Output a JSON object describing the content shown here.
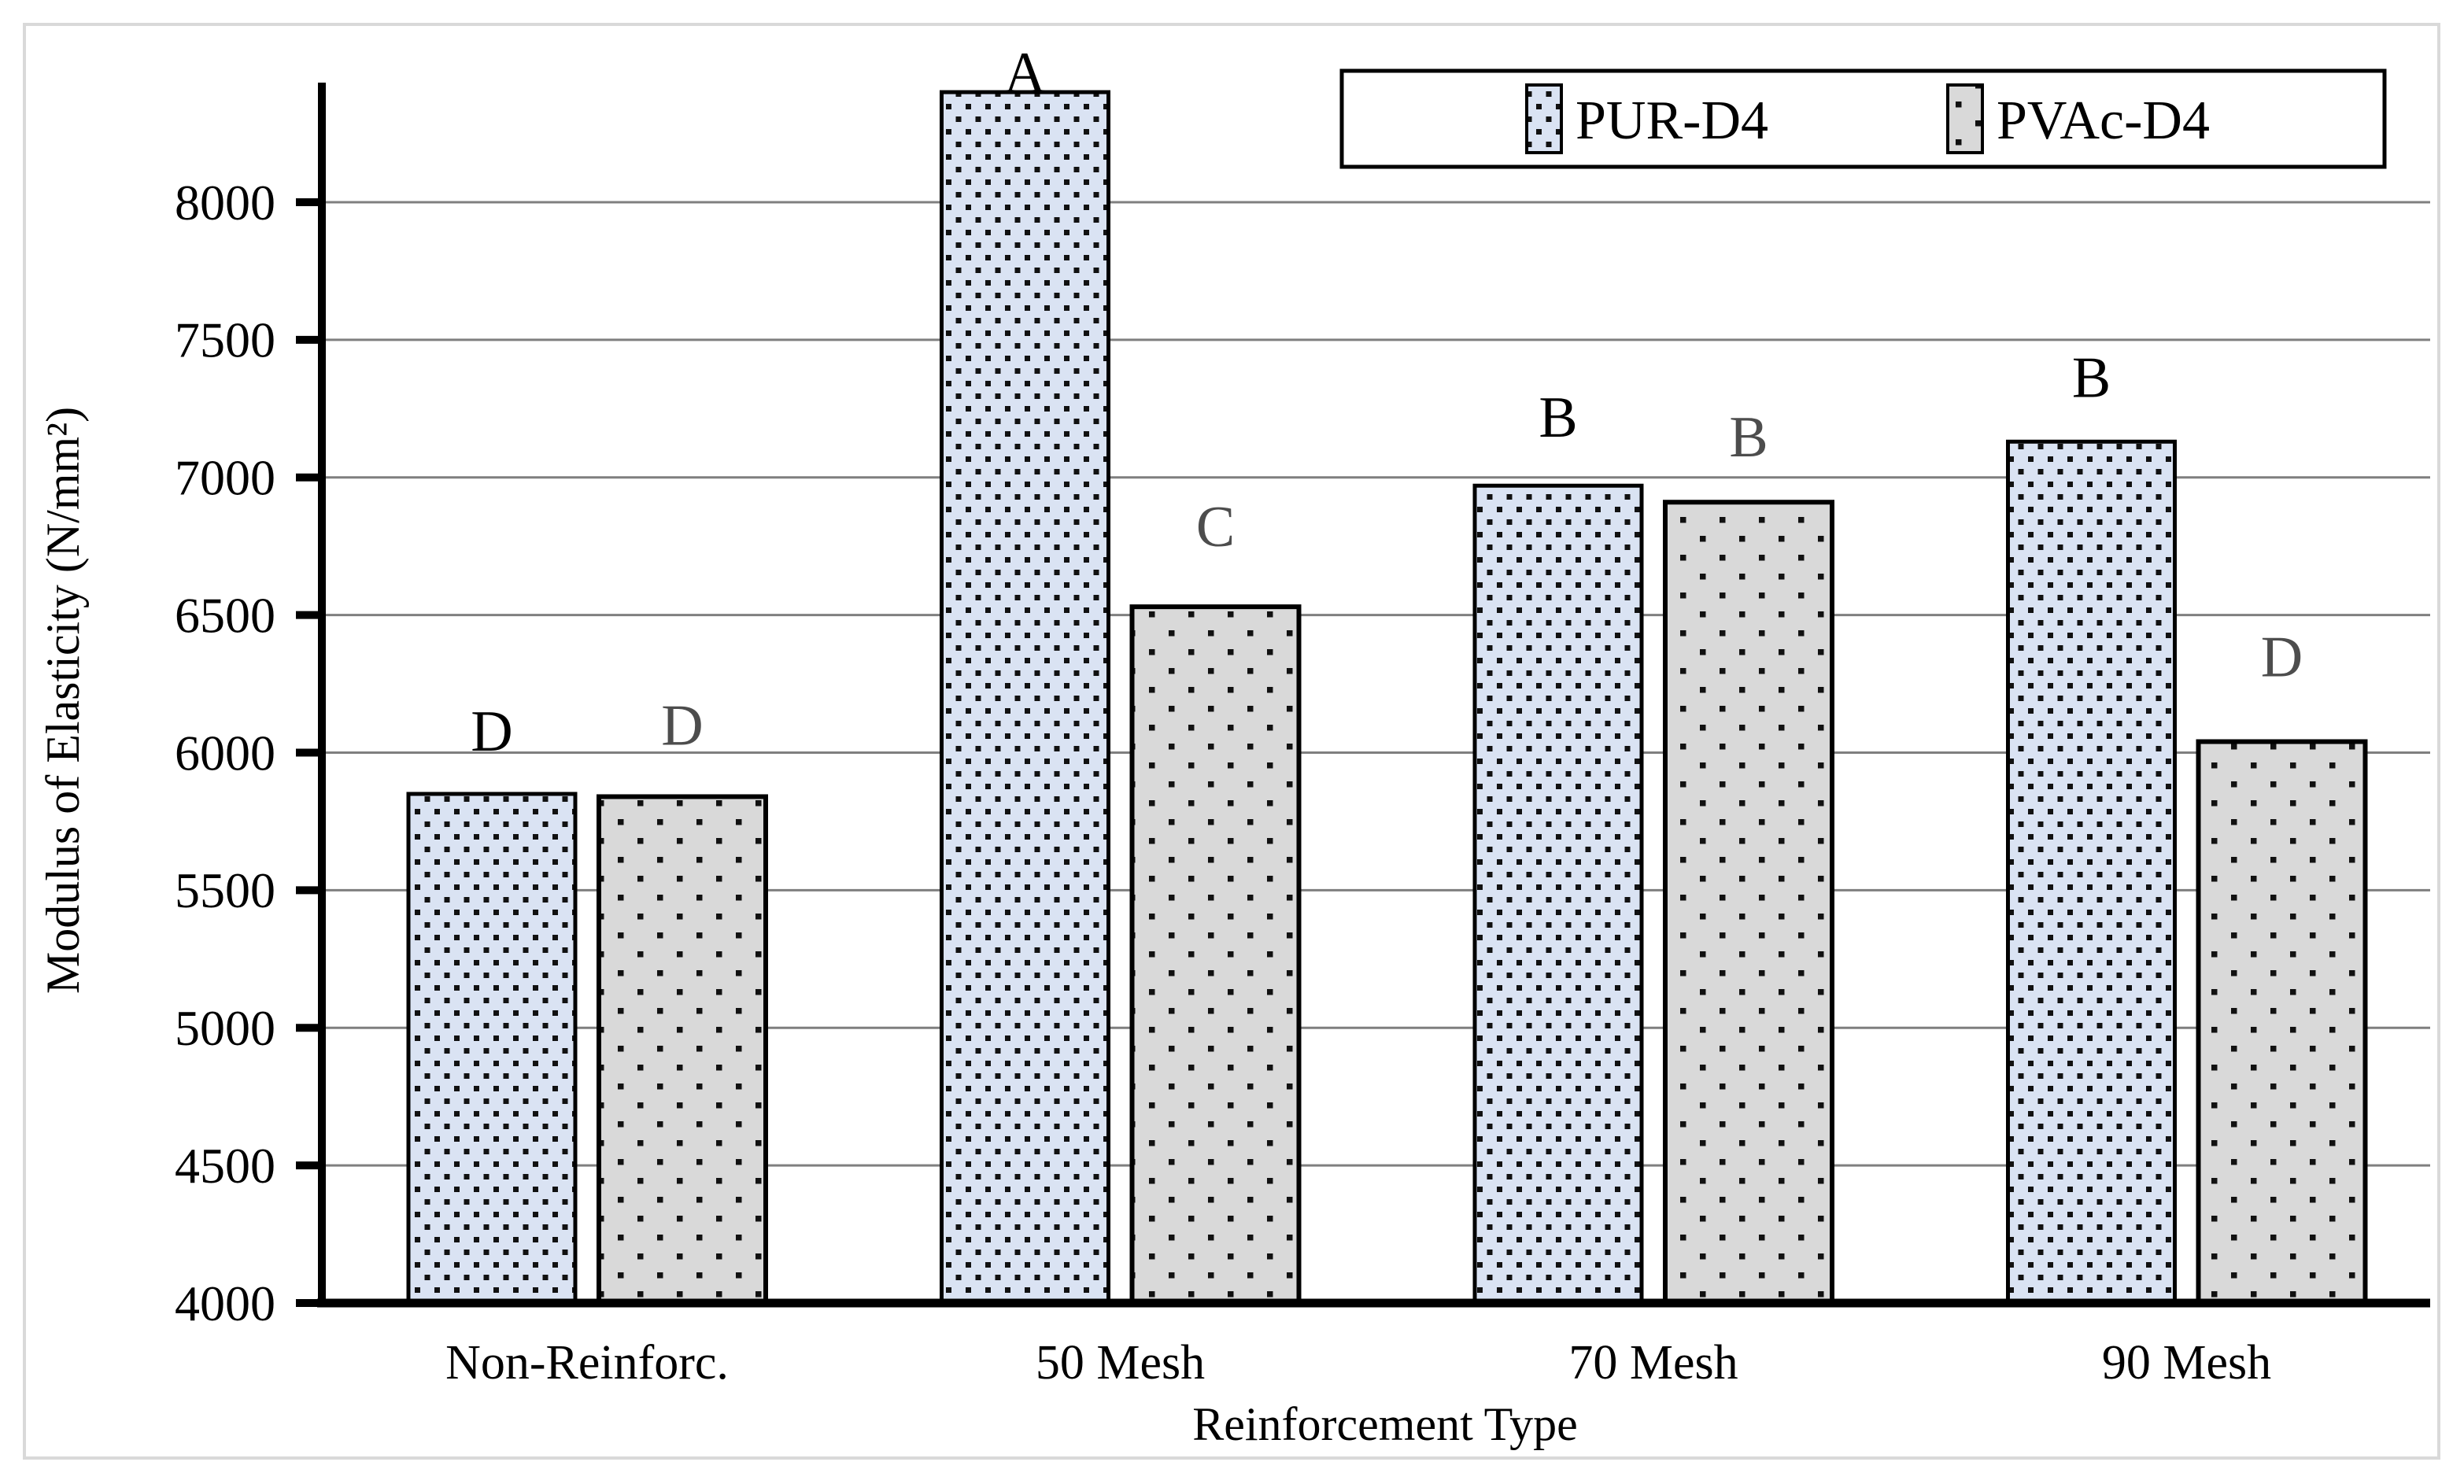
{
  "figure": {
    "kind": "journal-style clustered bar chart",
    "background": "#ffffff",
    "border_color": "#d9d9d9"
  },
  "chart_data": {
    "type": "bar",
    "title": "",
    "xlabel": "Reinforcement Type",
    "ylabel": "Modulus of Elasticity (N/mm²)",
    "categories": [
      "Non-Reinforc.",
      "50 Mesh",
      "70 Mesh",
      "90 Mesh"
    ],
    "series": [
      {
        "name": "PUR-D4",
        "values": [
          5850,
          8400,
          6970,
          7130
        ],
        "significance": [
          "D",
          "A",
          "B",
          "B"
        ],
        "fill": "#dae3f3",
        "pattern": "dense-square-dots",
        "letter_color": "#000000"
      },
      {
        "name": "PVAc-D4",
        "values": [
          5840,
          6530,
          6910,
          6040
        ],
        "significance": [
          "D",
          "C",
          "B",
          "D"
        ],
        "fill": "#d9d9d9",
        "pattern": "sparse-square-dots",
        "letter_color": "#4d4d4d"
      }
    ],
    "y_ticks": [
      4000,
      4500,
      5000,
      5500,
      6000,
      6500,
      7000,
      7500,
      8000
    ],
    "ylim": [
      4000,
      8440
    ],
    "grid": "horizontal",
    "legend_position": "top-right",
    "colors": {
      "gridline": "#7f7f7f",
      "axis": "#000000",
      "figure_border": "#d9d9d9",
      "background": "#ffffff"
    }
  }
}
